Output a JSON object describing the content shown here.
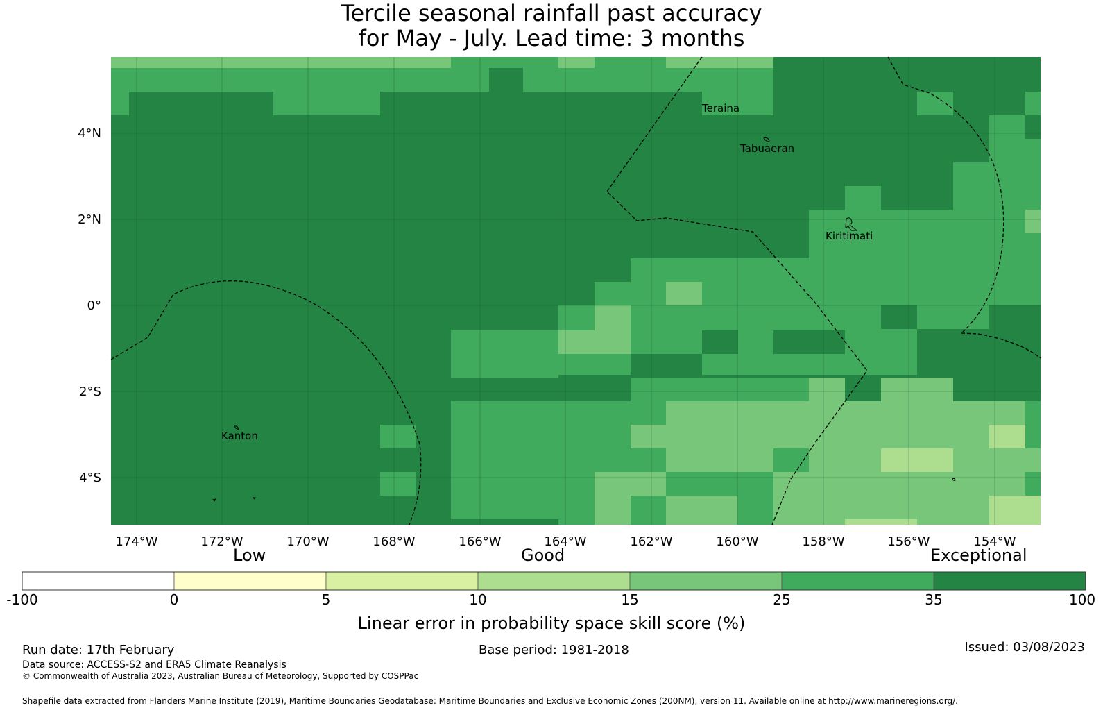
{
  "title_line1": "Tercile seasonal rainfall past accuracy",
  "title_line2": "for May - July. Lead time: 3 months",
  "map": {
    "lon_ticks": [
      "174°W",
      "172°W",
      "170°W",
      "168°W",
      "166°W",
      "164°W",
      "162°W",
      "160°W",
      "158°W",
      "156°W",
      "154°W"
    ],
    "lat_ticks": [
      "4°N",
      "2°N",
      "0°",
      "2°S",
      "4°S"
    ],
    "places": [
      "Teraina",
      "Tabuaeran",
      "Kiritimati",
      "Kanton"
    ],
    "colors": {
      "c0": "#ffffcc",
      "c5": "#d9f0a3",
      "c10": "#addd8e",
      "c15": "#78c679",
      "c25": "#41ab5d",
      "c35": "#238443"
    }
  },
  "colorbar": {
    "categories": [
      "Low",
      "Good",
      "Exceptional"
    ],
    "ticks": [
      "-100",
      "0",
      "5",
      "10",
      "15",
      "25",
      "35",
      "100"
    ],
    "colors": [
      "#ffffff",
      "#ffffcc",
      "#d9f0a3",
      "#addd8e",
      "#78c679",
      "#41ab5d",
      "#238443"
    ],
    "label": "Linear error in probability space skill score (%)"
  },
  "footer": {
    "run_date": "Run date: 17th February",
    "base_period": "Base period: 1981-2018",
    "issued": "Issued: 03/08/2023",
    "data_source": "Data source: ACCESS-S2 and ERA5 Climate Reanalysis",
    "copyright": "© Commonwealth of Australia 2023, Australian Bureau of Meteorology, Supported by COSPPac",
    "shapefile": "Shapefile data extracted from Flanders Marine Institute (2019), Maritime Boundaries Geodatabase: Maritime Boundaries and Exclusive Economic Zones (200NM), version 11. Available online at http://www.marineregions.org/."
  }
}
